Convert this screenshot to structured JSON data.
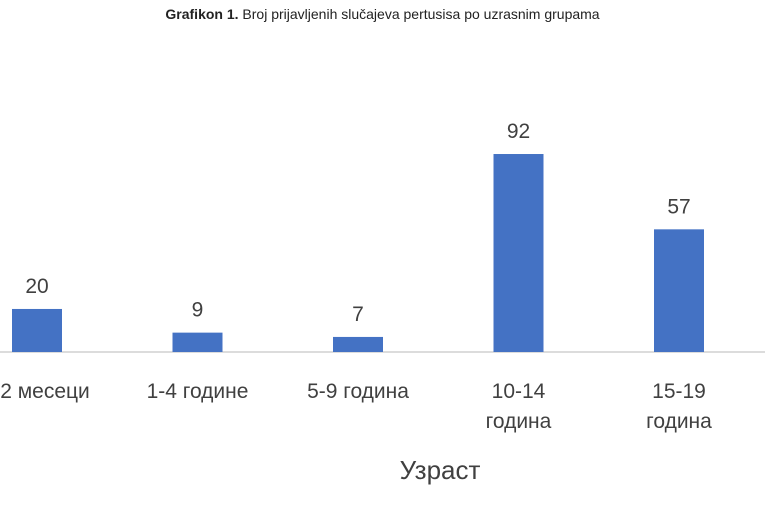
{
  "chart_data": {
    "type": "bar",
    "figure_label": "Grafikon 1.",
    "title": "Broj prijavljenih slučajeva pertusisa po uzrasnim grupama",
    "categories": [
      "2 месеци",
      "1-4 године",
      "5-9 година",
      "10-14 година",
      "15-19 година"
    ],
    "values": [
      20,
      9,
      7,
      92,
      57
    ],
    "color": "#4472c4",
    "x_label": "Узраст"
  }
}
